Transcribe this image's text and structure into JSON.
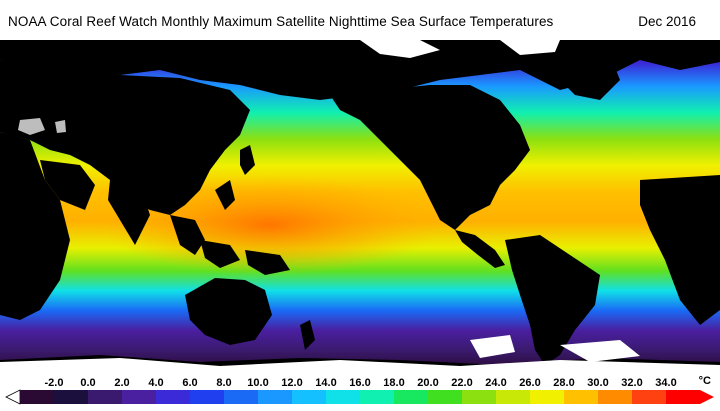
{
  "title": "NOAA Coral Reef Watch Monthly Maximum Satellite Nighttime Sea Surface Temperatures",
  "date": "Dec 2016",
  "legend": {
    "unit": "°C",
    "tick_labels": [
      "-2.0",
      "0.0",
      "2.0",
      "4.0",
      "6.0",
      "8.0",
      "10.0",
      "12.0",
      "14.0",
      "16.0",
      "18.0",
      "20.0",
      "22.0",
      "24.0",
      "26.0",
      "28.0",
      "30.0",
      "32.0",
      "34.0"
    ],
    "colors": [
      "#2a0a33",
      "#1a0f3d",
      "#3a1a6e",
      "#4a1fa0",
      "#3a2ad8",
      "#2040f0",
      "#1a6af5",
      "#1a98ff",
      "#14c0ff",
      "#10e0e8",
      "#10f0b0",
      "#18e860",
      "#40e020",
      "#8ce010",
      "#c8e808",
      "#f0f000",
      "#ffc000",
      "#ff8c00",
      "#ff4010",
      "#ff0000"
    ],
    "min": -2.0,
    "max": 34.0
  }
}
